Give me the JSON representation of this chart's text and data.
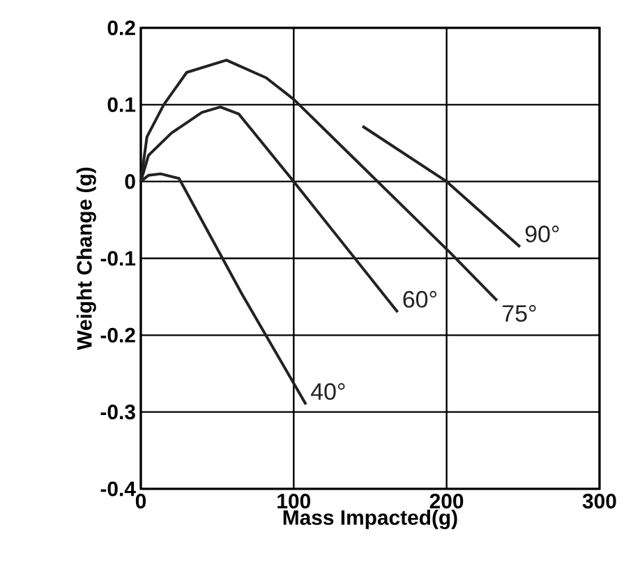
{
  "chart_data": {
    "type": "line",
    "xlabel": "Mass Impacted(g)",
    "ylabel": "Weight Change (g)",
    "xlim": [
      0,
      300
    ],
    "ylim": [
      -0.4,
      0.2
    ],
    "xticks": [
      0,
      100,
      200,
      300
    ],
    "yticks": [
      -0.4,
      -0.3,
      -0.2,
      -0.1,
      0,
      0.1,
      0.2
    ],
    "grid": true,
    "marker": "none",
    "line_style": "solid",
    "series": [
      {
        "name": "40°",
        "color": "#222222",
        "x": [
          0,
          5,
          13,
          25,
          66,
          108
        ],
        "values": [
          0,
          0.008,
          0.01,
          0.004,
          -0.146,
          -0.29
        ]
      },
      {
        "name": "60°",
        "color": "#222222",
        "x": [
          0,
          5,
          20,
          40,
          52,
          64,
          100,
          168
        ],
        "values": [
          0,
          0.034,
          0.063,
          0.09,
          0.097,
          0.088,
          0,
          -0.17
        ]
      },
      {
        "name": "75°",
        "color": "#222222",
        "x": [
          0,
          4,
          15,
          30,
          56,
          82,
          100,
          202,
          233
        ],
        "values": [
          0,
          0.058,
          0.1,
          0.142,
          0.158,
          0.135,
          0.107,
          -0.092,
          -0.155
        ]
      },
      {
        "name": "90°",
        "color": "#222222",
        "x": [
          145,
          200,
          248
        ],
        "values": [
          0.072,
          0,
          -0.085
        ]
      }
    ]
  }
}
